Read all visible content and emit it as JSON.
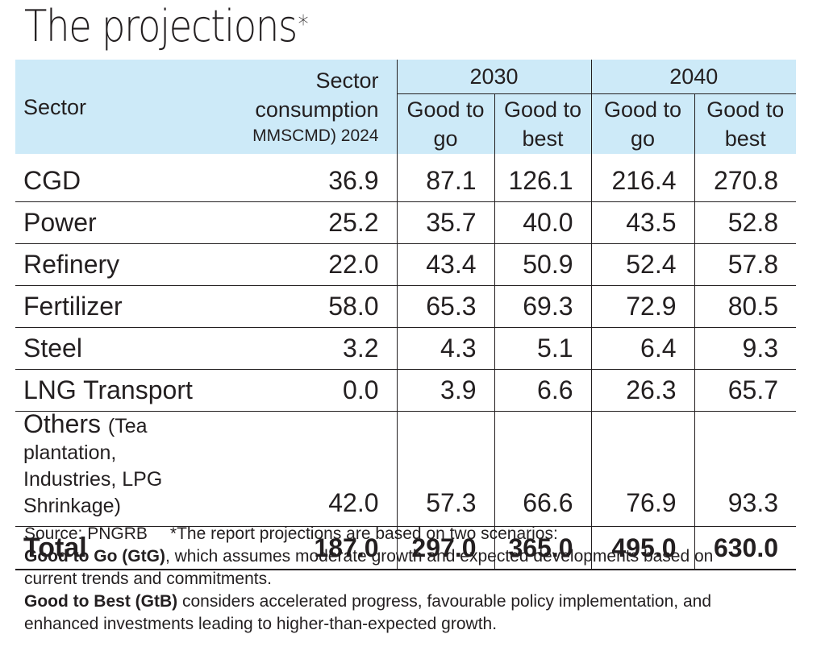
{
  "chart_data": {
    "type": "table",
    "title": "The projections",
    "title_marker": "*",
    "header": {
      "sector": "Sector",
      "consumption_line1": "Sector",
      "consumption_line2": "consumption",
      "consumption_line3": "MMSCMD) 2024",
      "year_2030": "2030",
      "year_2040": "2040",
      "gtg_line1": "Good to",
      "gtg_line2": "go",
      "gtb_line1": "Good to",
      "gtb_line2": "best"
    },
    "rows": [
      {
        "sector": "CGD",
        "consumption_2024": "36.9",
        "gtg_2030": "87.1",
        "gtb_2030": "126.1",
        "gtg_2040": "216.4",
        "gtb_2040": "270.8"
      },
      {
        "sector": "Power",
        "consumption_2024": "25.2",
        "gtg_2030": "35.7",
        "gtb_2030": "40.0",
        "gtg_2040": "43.5",
        "gtb_2040": "52.8"
      },
      {
        "sector": "Refinery",
        "consumption_2024": "22.0",
        "gtg_2030": "43.4",
        "gtb_2030": "50.9",
        "gtg_2040": "52.4",
        "gtb_2040": "57.8"
      },
      {
        "sector": "Fertilizer",
        "consumption_2024": "58.0",
        "gtg_2030": "65.3",
        "gtb_2030": "69.3",
        "gtg_2040": "72.9",
        "gtb_2040": "80.5"
      },
      {
        "sector": "Steel",
        "consumption_2024": "3.2",
        "gtg_2030": "4.3",
        "gtb_2030": "5.1",
        "gtg_2040": "6.4",
        "gtb_2040": "9.3"
      },
      {
        "sector": "LNG Transport",
        "consumption_2024": "0.0",
        "gtg_2030": "3.9",
        "gtb_2030": "6.6",
        "gtg_2040": "26.3",
        "gtb_2040": "65.7"
      },
      {
        "sector": "Others",
        "sector_note_line1": "(Tea plantation,",
        "sector_note_line2": "Industries, LPG Shrinkage)",
        "consumption_2024": "42.0",
        "gtg_2030": "57.3",
        "gtb_2030": "66.6",
        "gtg_2040": "76.9",
        "gtb_2040": "93.3"
      }
    ],
    "total": {
      "sector": "Total",
      "consumption_2024": "187.0",
      "gtg_2030": "297.0",
      "gtb_2030": "365.0",
      "gtg_2040": "495.0",
      "gtb_2040": "630.0"
    }
  },
  "footer": {
    "source": "Source: PNGRB",
    "note": "*The report projections are based on two scenarios:",
    "gtg_bold": "Good to Go (GtG)",
    "gtg_text": ", which assumes moderate growth and expected developments based on",
    "gtg_text2": "current trends and commitments.",
    "gtb_bold": "Good to Best (GtB)",
    "gtb_text": " considers accelerated progress, favourable policy implementation, and",
    "gtb_text2": "enhanced investments leading to higher-than-expected growth."
  },
  "colors": {
    "header_bg": "#cdeaf8",
    "text": "#231f20"
  }
}
